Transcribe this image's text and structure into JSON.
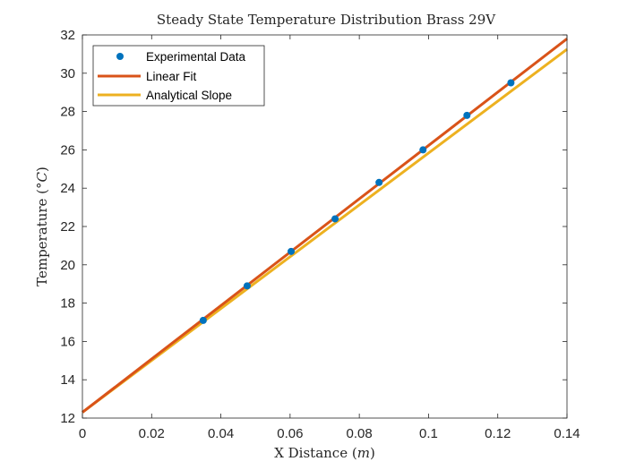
{
  "chart_data": {
    "type": "line",
    "title": "Steady State Temperature Distribution Brass 29V",
    "xlabel": "X Distance (m)",
    "ylabel": "Temperature (°C)",
    "xlim": [
      0,
      0.14
    ],
    "ylim": [
      12,
      32
    ],
    "xticks": [
      "0",
      "0.02",
      "0.04",
      "0.06",
      "0.08",
      "0.1",
      "0.12",
      "0.14"
    ],
    "yticks": [
      "12",
      "14",
      "16",
      "18",
      "20",
      "22",
      "24",
      "26",
      "28",
      "30",
      "32"
    ],
    "legend_position": "top-left",
    "series": [
      {
        "name": "Experimental Data",
        "kind": "scatter",
        "color": "#0072BD",
        "x": [
          0.0349,
          0.0476,
          0.0603,
          0.073,
          0.0857,
          0.0984,
          0.1111,
          0.1238
        ],
        "y": [
          17.1,
          18.9,
          20.7,
          22.4,
          24.3,
          26.0,
          27.8,
          29.5
        ]
      },
      {
        "name": "Linear Fit",
        "kind": "line",
        "color": "#D95319",
        "x": [
          0,
          0.14
        ],
        "y": [
          12.3,
          31.8
        ]
      },
      {
        "name": "Analytical Slope",
        "kind": "line",
        "color": "#EDB120",
        "x": [
          0,
          0.14
        ],
        "y": [
          12.3,
          31.25
        ]
      }
    ]
  }
}
